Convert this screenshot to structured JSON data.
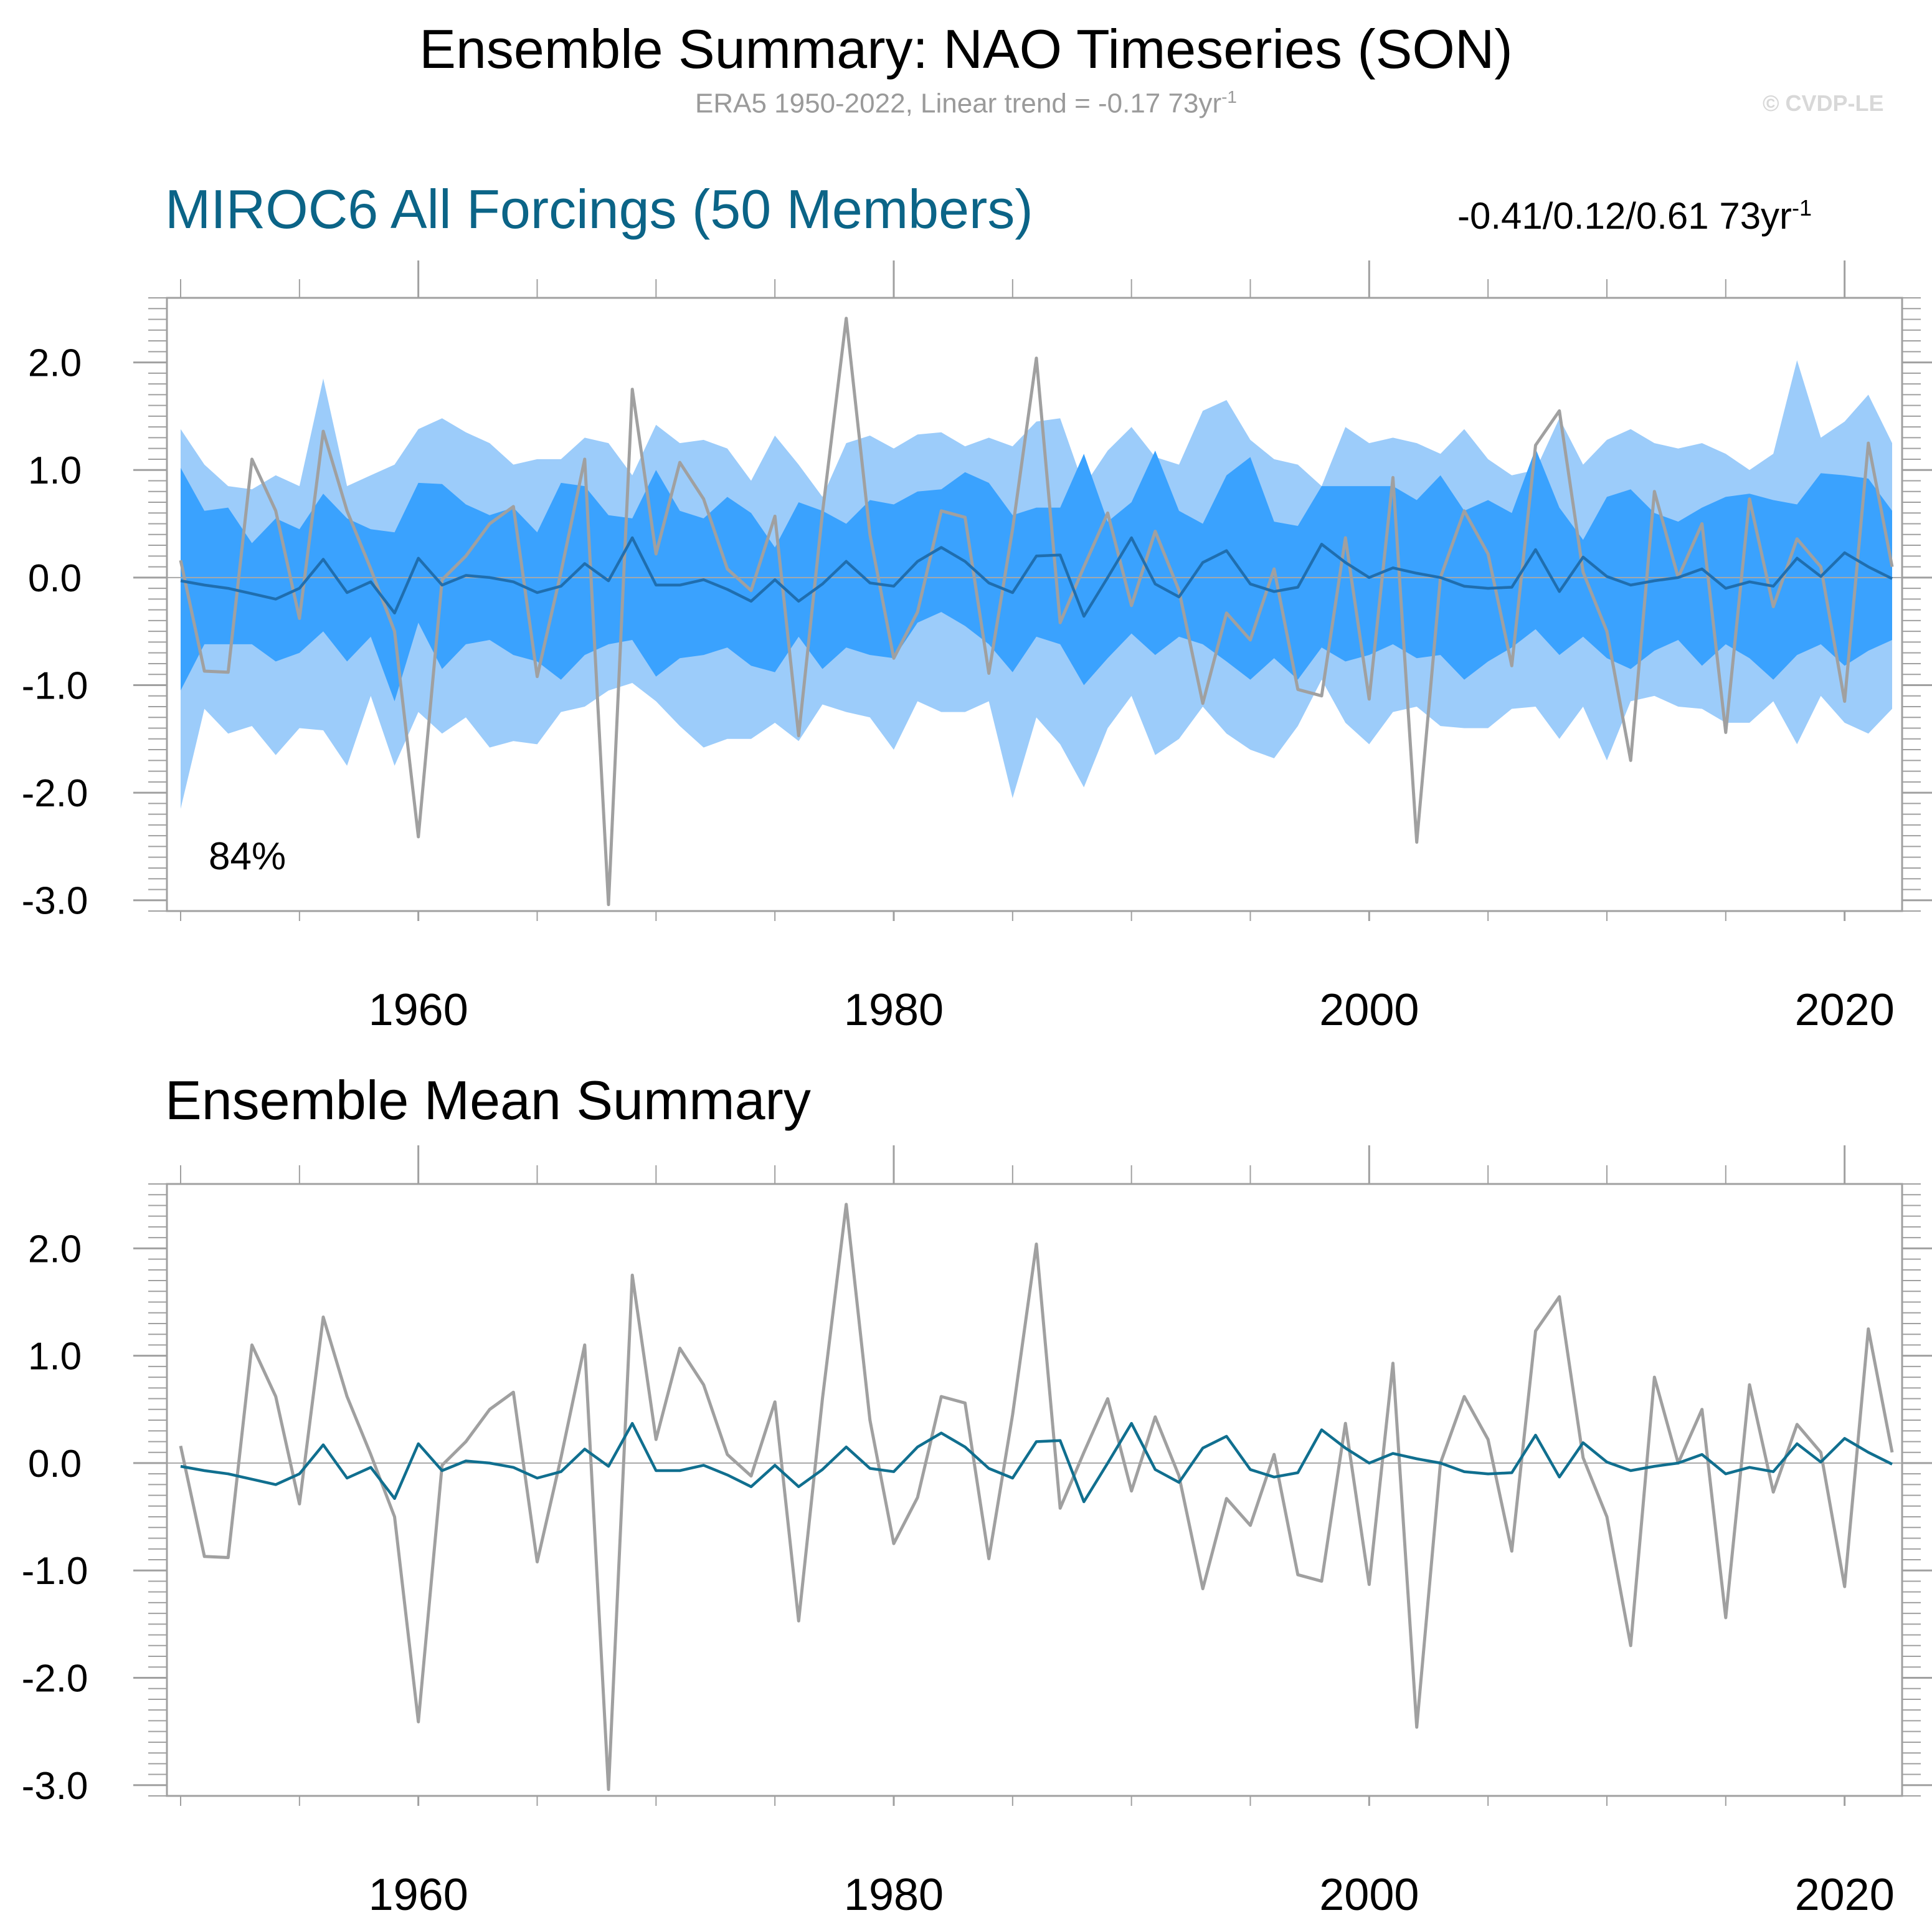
{
  "title": "Ensemble Summary: NAO Timeseries (SON)",
  "subtitle": {
    "text": "ERA5 1950-2022, Linear trend = -0.17 73yr",
    "sup": "-1"
  },
  "copyright": "© CVDP-LE",
  "colors": {
    "accent": "#0b6487",
    "obs": "#a0a0a0",
    "band_outer": "#9cccfa",
    "band_inner": "#3aa2fe",
    "ens_mean_top": "#1f6eaf",
    "ens_mean_bottom": "#106f8f",
    "axis": "#a0a0a0"
  },
  "chart_data": [
    {
      "type": "area",
      "title": "MIROC6 All Forcings (50 Members)",
      "trend_label": {
        "text": "-0.41/0.12/0.61 73yr",
        "sup": "-1"
      },
      "annotation": "84%",
      "xlim": [
        1950,
        2022
      ],
      "ylim": [
        -3.1,
        2.6
      ],
      "xticks": [
        {
          "v": 1960,
          "label": "1960"
        },
        {
          "v": 1980,
          "label": "1980"
        },
        {
          "v": 2000,
          "label": "2000"
        },
        {
          "v": 2020,
          "label": "2020"
        }
      ],
      "yticks": [
        {
          "v": 2,
          "label": "2.0"
        },
        {
          "v": 1,
          "label": "1.0"
        },
        {
          "v": 0,
          "label": "0.0"
        },
        {
          "v": -1,
          "label": "-1.0"
        },
        {
          "v": -2,
          "label": "-2.0"
        },
        {
          "v": -3,
          "label": "-3.0"
        }
      ],
      "series": [
        {
          "name": "ensemble 2.5-97.5%",
          "kind": "band",
          "upper": [
            1.38,
            1.05,
            0.85,
            0.82,
            0.95,
            0.85,
            1.85,
            0.85,
            0.95,
            1.05,
            1.38,
            1.48,
            1.35,
            1.25,
            1.05,
            1.1,
            1.1,
            1.3,
            1.25,
            0.95,
            1.42,
            1.25,
            1.28,
            1.2,
            0.9,
            1.32,
            1.05,
            0.75,
            1.25,
            1.32,
            1.2,
            1.33,
            1.35,
            1.22,
            1.3,
            1.22,
            1.45,
            1.48,
            0.85,
            1.18,
            1.4,
            1.12,
            1.05,
            1.55,
            1.65,
            1.28,
            1.1,
            1.05,
            0.85,
            1.4,
            1.25,
            1.3,
            1.25,
            1.15,
            1.38,
            1.1,
            0.95,
            1.0,
            1.48,
            1.05,
            1.28,
            1.38,
            1.25,
            1.2,
            1.25,
            1.15,
            1.0,
            1.15,
            2.02,
            1.3,
            1.45,
            1.7,
            1.25
          ],
          "lower": [
            -2.15,
            -1.22,
            -1.45,
            -1.38,
            -1.65,
            -1.4,
            -1.42,
            -1.75,
            -1.1,
            -1.75,
            -1.25,
            -1.45,
            -1.3,
            -1.58,
            -1.52,
            -1.55,
            -1.25,
            -1.2,
            -1.05,
            -0.98,
            -1.15,
            -1.38,
            -1.58,
            -1.5,
            -1.5,
            -1.35,
            -1.52,
            -1.18,
            -1.25,
            -1.3,
            -1.6,
            -1.15,
            -1.25,
            -1.25,
            -1.15,
            -2.05,
            -1.3,
            -1.55,
            -1.95,
            -1.4,
            -1.1,
            -1.65,
            -1.5,
            -1.2,
            -1.45,
            -1.6,
            -1.68,
            -1.38,
            -0.95,
            -1.35,
            -1.55,
            -1.25,
            -1.2,
            -1.38,
            -1.4,
            -1.4,
            -1.22,
            -1.2,
            -1.5,
            -1.2,
            -1.7,
            -1.15,
            -1.1,
            -1.2,
            -1.22,
            -1.35,
            -1.35,
            -1.15,
            -1.55,
            -1.1,
            -1.35,
            -1.45,
            -1.22
          ]
        },
        {
          "name": "ensemble 25-75%",
          "kind": "band",
          "upper": [
            1.02,
            0.62,
            0.65,
            0.32,
            0.55,
            0.45,
            0.78,
            0.55,
            0.45,
            0.42,
            0.88,
            0.87,
            0.68,
            0.58,
            0.65,
            0.42,
            0.88,
            0.85,
            0.58,
            0.55,
            1.0,
            0.62,
            0.55,
            0.75,
            0.6,
            0.28,
            0.7,
            0.62,
            0.5,
            0.72,
            0.68,
            0.8,
            0.82,
            0.98,
            0.88,
            0.58,
            0.65,
            0.65,
            1.15,
            0.52,
            0.7,
            1.18,
            0.62,
            0.5,
            0.95,
            1.12,
            0.52,
            0.48,
            0.85,
            0.85,
            0.85,
            0.85,
            0.72,
            0.95,
            0.62,
            0.72,
            0.6,
            1.2,
            0.65,
            0.35,
            0.75,
            0.82,
            0.6,
            0.52,
            0.65,
            0.75,
            0.78,
            0.72,
            0.68,
            0.97,
            0.95,
            0.92,
            0.62
          ],
          "lower": [
            -1.05,
            -0.62,
            -0.62,
            -0.62,
            -0.78,
            -0.7,
            -0.5,
            -0.78,
            -0.55,
            -1.15,
            -0.42,
            -0.85,
            -0.62,
            -0.58,
            -0.72,
            -0.78,
            -0.95,
            -0.72,
            -0.62,
            -0.58,
            -0.92,
            -0.75,
            -0.72,
            -0.65,
            -0.82,
            -0.88,
            -0.55,
            -0.85,
            -0.65,
            -0.72,
            -0.75,
            -0.42,
            -0.32,
            -0.45,
            -0.62,
            -0.88,
            -0.55,
            -0.62,
            -1.0,
            -0.75,
            -0.52,
            -0.72,
            -0.55,
            -0.62,
            -0.78,
            -0.95,
            -0.75,
            -0.95,
            -0.65,
            -0.78,
            -0.72,
            -0.62,
            -0.75,
            -0.72,
            -0.95,
            -0.78,
            -0.65,
            -0.48,
            -0.72,
            -0.55,
            -0.75,
            -0.85,
            -0.68,
            -0.58,
            -0.82,
            -0.62,
            -0.75,
            -0.95,
            -0.72,
            -0.62,
            -0.82,
            -0.68,
            -0.58
          ]
        },
        {
          "name": "MIROC6 ensemble mean",
          "kind": "line",
          "values": [
            -0.03,
            -0.07,
            -0.1,
            -0.15,
            -0.2,
            -0.1,
            0.17,
            -0.14,
            -0.04,
            -0.33,
            0.18,
            -0.07,
            0.02,
            0.0,
            -0.04,
            -0.14,
            -0.08,
            0.13,
            -0.03,
            0.37,
            -0.07,
            -0.07,
            -0.02,
            -0.11,
            -0.22,
            -0.02,
            -0.22,
            -0.06,
            0.15,
            -0.05,
            -0.08,
            0.15,
            0.28,
            0.15,
            -0.05,
            -0.14,
            0.2,
            0.21,
            -0.36,
            0.0,
            0.37,
            -0.06,
            -0.18,
            0.14,
            0.25,
            -0.06,
            -0.13,
            -0.09,
            0.31,
            0.14,
            0.0,
            0.09,
            0.04,
            0.0,
            -0.08,
            -0.1,
            -0.09,
            0.26,
            -0.13,
            0.19,
            0.01,
            -0.07,
            -0.03,
            0.0,
            0.08,
            -0.1,
            -0.04,
            -0.08,
            0.18,
            0.01,
            0.23,
            0.1,
            -0.01
          ]
        },
        {
          "name": "ERA5",
          "kind": "line",
          "values": [
            0.16,
            -0.87,
            -0.88,
            1.1,
            0.62,
            -0.38,
            1.36,
            0.62,
            0.08,
            -0.5,
            -2.41,
            -0.02,
            0.2,
            0.5,
            0.66,
            -0.92,
            0.05,
            1.1,
            -3.04,
            1.75,
            0.22,
            1.07,
            0.73,
            0.08,
            -0.12,
            0.57,
            -1.47,
            0.6,
            2.41,
            0.4,
            -0.75,
            -0.32,
            0.62,
            0.56,
            -0.89,
            0.45,
            2.04,
            -0.42,
            0.1,
            0.6,
            -0.26,
            0.43,
            -0.12,
            -1.17,
            -0.33,
            -0.58,
            0.08,
            -1.04,
            -1.1,
            0.37,
            -1.13,
            0.93,
            -2.46,
            0.0,
            0.62,
            0.22,
            -0.82,
            1.23,
            1.55,
            0.05,
            -0.5,
            -1.7,
            0.8,
            0.0,
            0.5,
            -1.44,
            0.73,
            -0.27,
            0.36,
            0.1,
            -1.15,
            1.25,
            0.1
          ]
        }
      ]
    },
    {
      "type": "line",
      "title": "Ensemble Mean Summary",
      "xlim": [
        1950,
        2022
      ],
      "ylim": [
        -3.1,
        2.6
      ],
      "xticks": [
        {
          "v": 1960,
          "label": "1960"
        },
        {
          "v": 1980,
          "label": "1980"
        },
        {
          "v": 2000,
          "label": "2000"
        },
        {
          "v": 2020,
          "label": "2020"
        }
      ],
      "yticks": [
        {
          "v": 2,
          "label": "2.0"
        },
        {
          "v": 1,
          "label": "1.0"
        },
        {
          "v": 0,
          "label": "0.0"
        },
        {
          "v": -1,
          "label": "-1.0"
        },
        {
          "v": -2,
          "label": "-2.0"
        },
        {
          "v": -3,
          "label": "-3.0"
        }
      ],
      "series": [
        {
          "name": "ERA5",
          "kind": "line",
          "values": [
            0.16,
            -0.87,
            -0.88,
            1.1,
            0.62,
            -0.38,
            1.36,
            0.62,
            0.08,
            -0.5,
            -2.41,
            -0.02,
            0.2,
            0.5,
            0.66,
            -0.92,
            0.05,
            1.1,
            -3.04,
            1.75,
            0.22,
            1.07,
            0.73,
            0.08,
            -0.12,
            0.57,
            -1.47,
            0.6,
            2.41,
            0.4,
            -0.75,
            -0.32,
            0.62,
            0.56,
            -0.89,
            0.45,
            2.04,
            -0.42,
            0.1,
            0.6,
            -0.26,
            0.43,
            -0.12,
            -1.17,
            -0.33,
            -0.58,
            0.08,
            -1.04,
            -1.1,
            0.37,
            -1.13,
            0.93,
            -2.46,
            0.0,
            0.62,
            0.22,
            -0.82,
            1.23,
            1.55,
            0.05,
            -0.5,
            -1.7,
            0.8,
            0.0,
            0.5,
            -1.44,
            0.73,
            -0.27,
            0.36,
            0.1,
            -1.15,
            1.25,
            0.1
          ]
        },
        {
          "name": "MIROC6 ensemble mean",
          "kind": "line",
          "values": [
            -0.03,
            -0.07,
            -0.1,
            -0.15,
            -0.2,
            -0.1,
            0.17,
            -0.14,
            -0.04,
            -0.33,
            0.18,
            -0.07,
            0.02,
            0.0,
            -0.04,
            -0.14,
            -0.08,
            0.13,
            -0.03,
            0.37,
            -0.07,
            -0.07,
            -0.02,
            -0.11,
            -0.22,
            -0.02,
            -0.22,
            -0.06,
            0.15,
            -0.05,
            -0.08,
            0.15,
            0.28,
            0.15,
            -0.05,
            -0.14,
            0.2,
            0.21,
            -0.36,
            0.0,
            0.37,
            -0.06,
            -0.18,
            0.14,
            0.25,
            -0.06,
            -0.13,
            -0.09,
            0.31,
            0.14,
            0.0,
            0.09,
            0.04,
            0.0,
            -0.08,
            -0.1,
            -0.09,
            0.26,
            -0.13,
            0.19,
            0.01,
            -0.07,
            -0.03,
            0.0,
            0.08,
            -0.1,
            -0.04,
            -0.08,
            0.18,
            0.01,
            0.23,
            0.1,
            -0.01
          ]
        }
      ]
    }
  ]
}
